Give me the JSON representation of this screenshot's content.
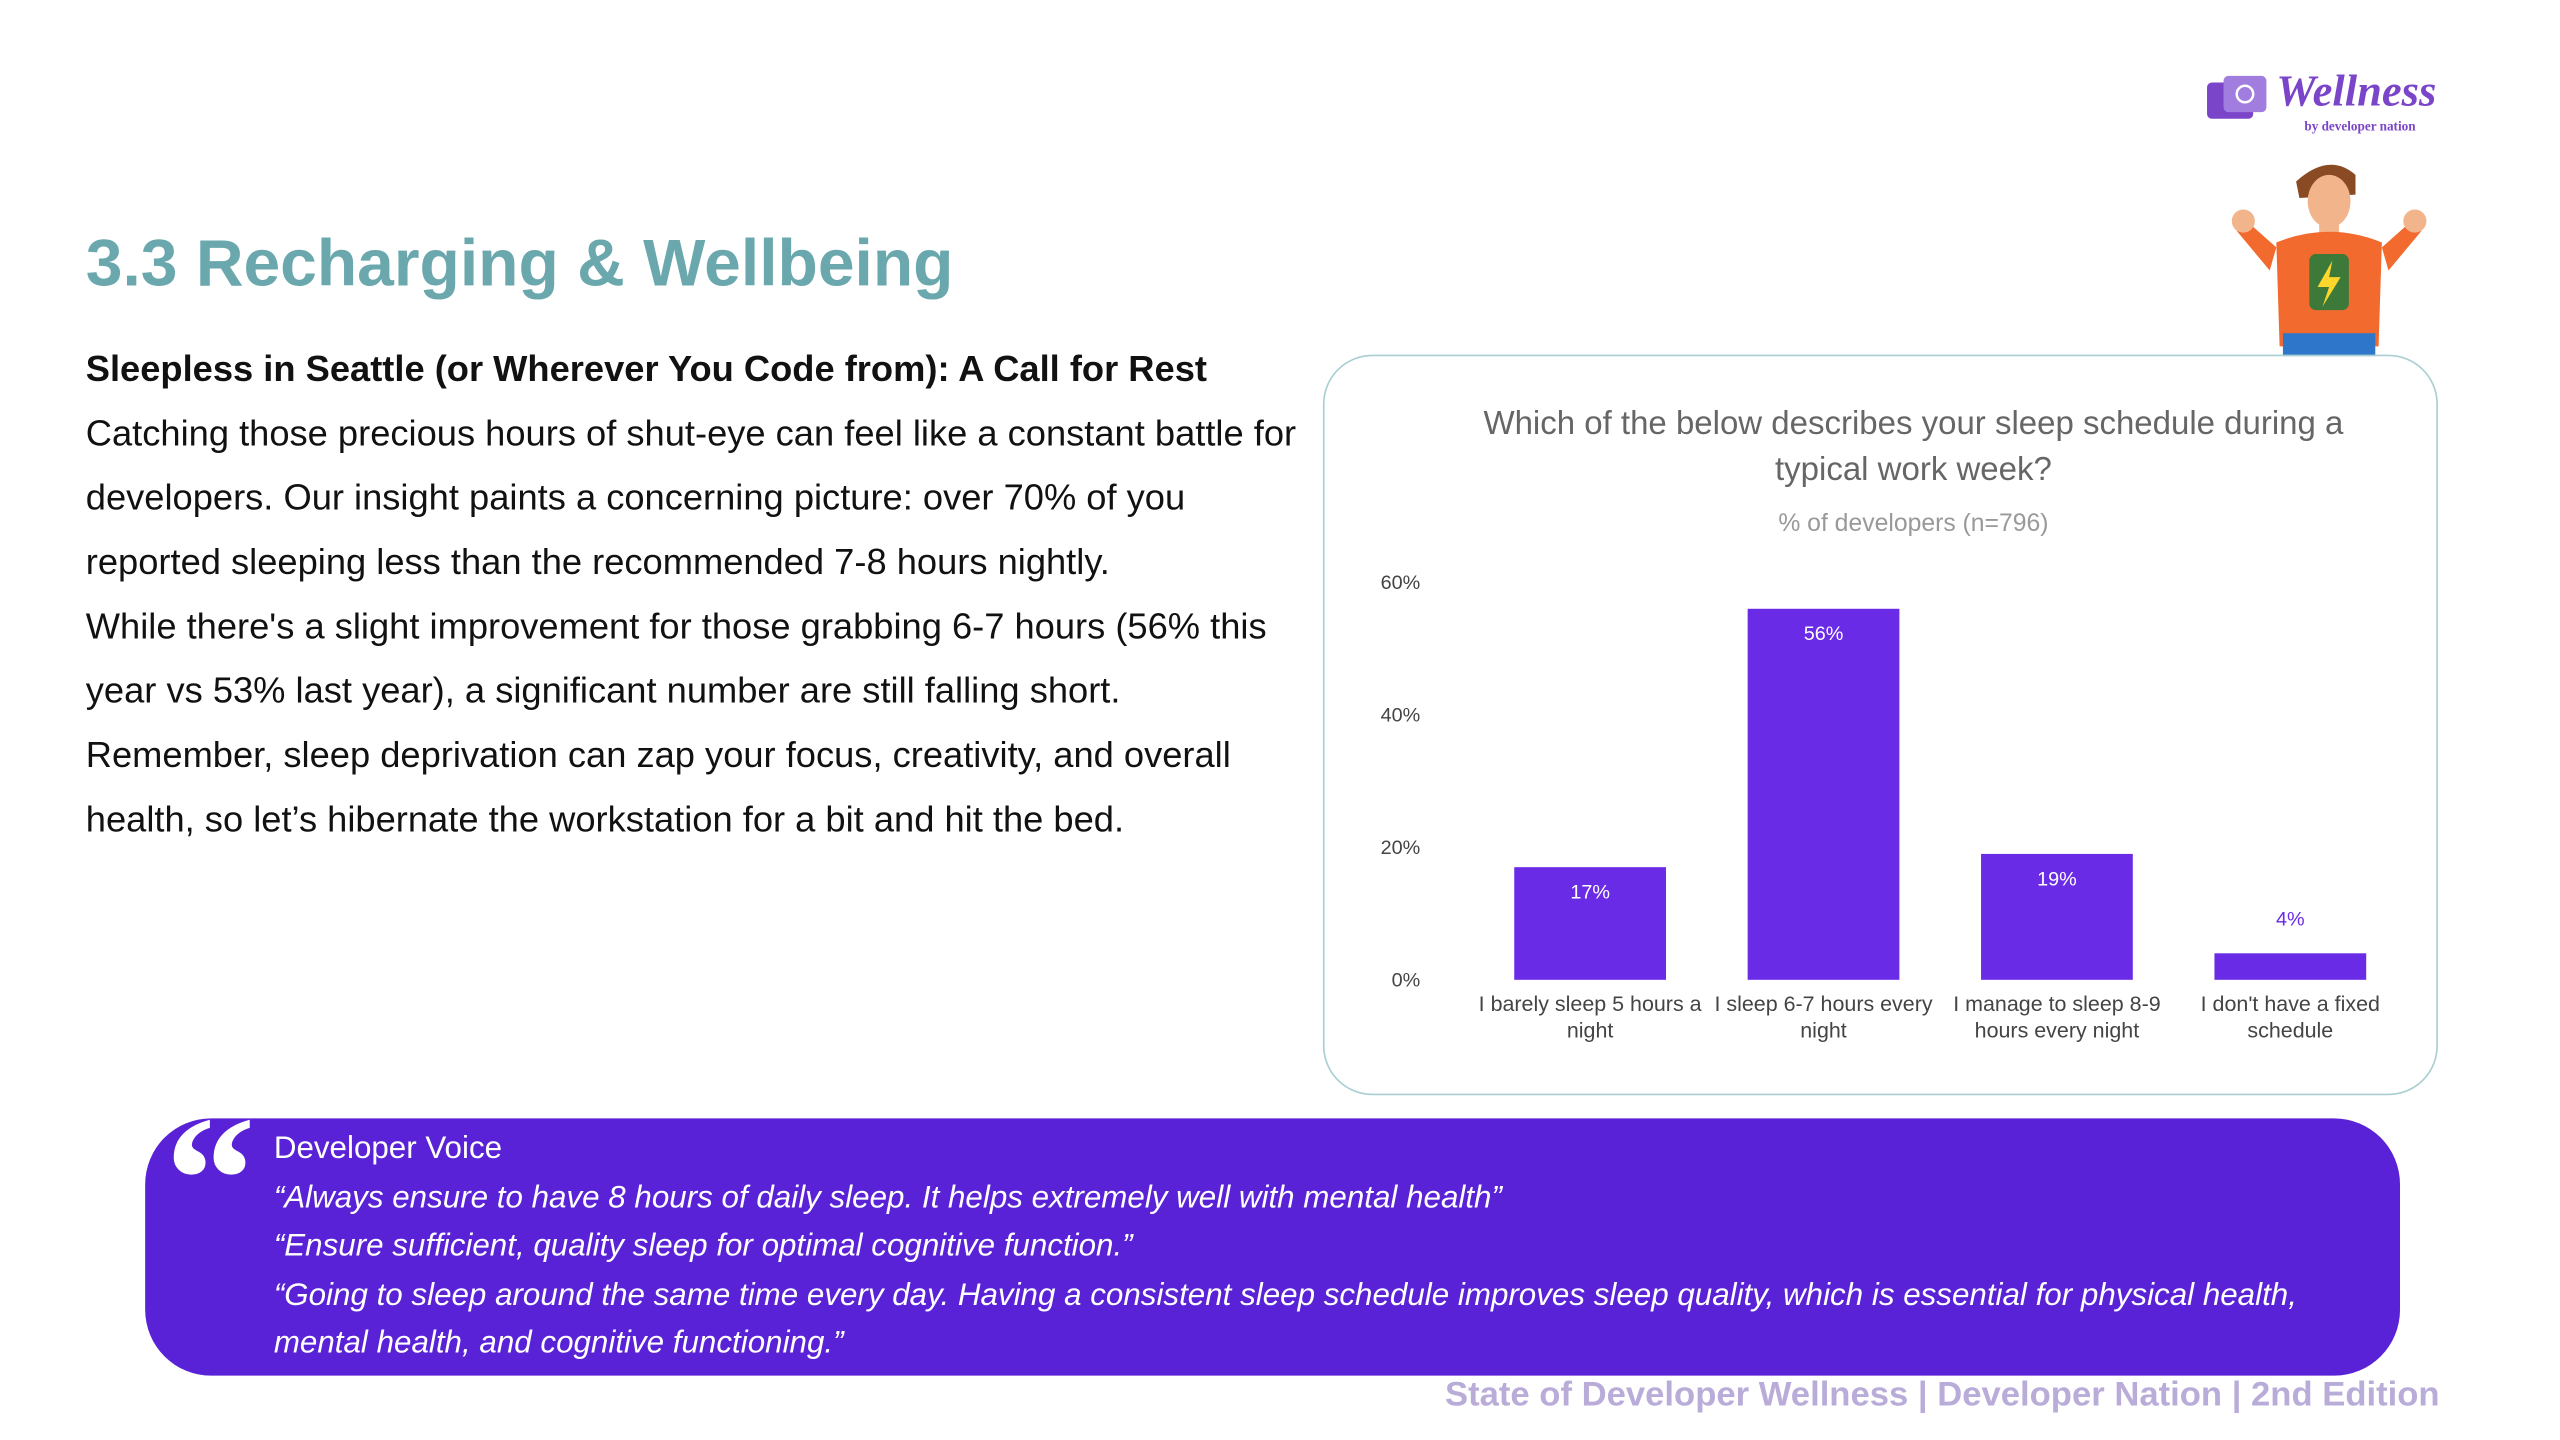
{
  "logo": {
    "name": "Wellness",
    "tagline": "by developer nation"
  },
  "header": {
    "title": "3.3 Recharging & Wellbeing"
  },
  "body": {
    "subtitle": "Sleepless in Seattle (or Wherever You Code from): A Call for Rest",
    "paragraphs": [
      "Catching those precious hours of shut-eye can feel like a constant battle for developers.  Our insight paints a concerning picture: over 70% of you reported sleeping less than the recommended 7-8 hours nightly.",
      "While there's a slight improvement for those grabbing 6-7 hours (56% this year vs 53% last year), a significant number are still falling short. Remember, sleep deprivation can zap your focus, creativity, and overall health, so let’s hibernate the workstation for a bit and hit the bed."
    ]
  },
  "chart_data": {
    "type": "bar",
    "title": "Which of the below describes your sleep schedule during a typical work week?",
    "subtitle": "% of developers (n=796)",
    "categories": [
      "I barely sleep 5 hours a night",
      "I sleep 6-7 hours every night",
      "I manage to sleep 8-9 hours every night",
      "I don't have a fixed schedule"
    ],
    "values": [
      17,
      56,
      19,
      4
    ],
    "value_labels": [
      "17%",
      "56%",
      "19%",
      "4%"
    ],
    "color": "#6a2be6",
    "ylim": [
      0,
      60
    ],
    "yticks": [
      {
        "value": 0,
        "label": "0%"
      },
      {
        "value": 20,
        "label": "20%"
      },
      {
        "value": 40,
        "label": "40%"
      },
      {
        "value": 60,
        "label": "60%"
      }
    ],
    "grid": false
  },
  "quote": {
    "heading": "Developer Voice",
    "lines": [
      "“Always ensure to have 8 hours of daily sleep. It helps extremely well with mental health”",
      "“Ensure sufficient, quality sleep for optimal cognitive function.”",
      "“Going to sleep around the same time every day. Having a consistent sleep schedule improves sleep quality, which is essential for physical health, mental health, and cognitive functioning.”"
    ]
  },
  "footer": {
    "text": "State of Developer Wellness | Developer Nation | 2nd Edition"
  }
}
